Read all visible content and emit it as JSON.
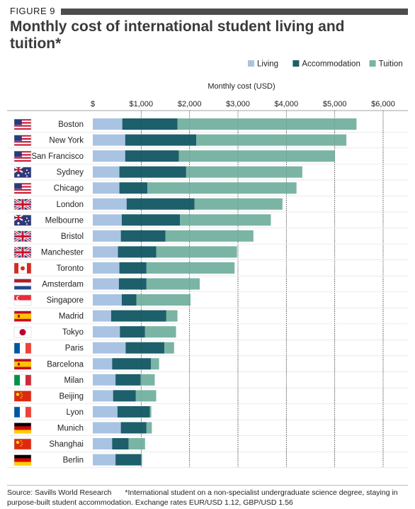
{
  "figure_label": "FIGURE 9",
  "title": "Monthly cost of international student living and tuition*",
  "footer": {
    "source": "Source: Savills World Research",
    "note": "*International student on a non-specialist undergraduate science degree, staying in purpose-built student accommodation.  Exchange rates EUR/USD 1.12, GBP/USD 1.56"
  },
  "chart_data": {
    "type": "bar",
    "orientation": "horizontal",
    "stacked": true,
    "xlabel": "Monthly cost (USD)",
    "xlim": [
      0,
      6000
    ],
    "x_ticks": [
      0,
      1000,
      2000,
      3000,
      4000,
      5000,
      6000
    ],
    "x_tick_labels": [
      "$",
      "$1,000",
      "$2,000",
      "$3,000",
      "$4,000",
      "$5,000",
      "$6,000"
    ],
    "grid": true,
    "legend_position": "top-right",
    "categories": [
      "Boston",
      "New York",
      "San Francisco",
      "Sydney",
      "Chicago",
      "London",
      "Melbourne",
      "Bristol",
      "Manchester",
      "Toronto",
      "Amsterdam",
      "Singapore",
      "Madrid",
      "Tokyo",
      "Paris",
      "Barcelona",
      "Milan",
      "Beijing",
      "Lyon",
      "Munich",
      "Shanghai",
      "Berlin"
    ],
    "flags": [
      "us",
      "us",
      "us",
      "au",
      "us",
      "gb",
      "au",
      "gb",
      "gb",
      "ca",
      "nl",
      "sg",
      "es",
      "jp",
      "fr",
      "es",
      "it",
      "cn",
      "fr",
      "de",
      "cn",
      "de"
    ],
    "series": [
      {
        "name": "Living",
        "color": "#a9c3e3",
        "values": [
          610,
          670,
          670,
          550,
          550,
          700,
          600,
          580,
          520,
          550,
          540,
          600,
          380,
          560,
          680,
          400,
          470,
          420,
          510,
          580,
          400,
          470
        ]
      },
      {
        "name": "Accommodation",
        "color": "#1d5f6b",
        "values": [
          1140,
          1470,
          1110,
          1380,
          580,
          1400,
          1200,
          920,
          790,
          560,
          570,
          300,
          1140,
          520,
          800,
          800,
          520,
          470,
          670,
          530,
          340,
          530
        ]
      },
      {
        "name": "Tuition",
        "color": "#7ab4a5",
        "values": [
          3700,
          3100,
          3220,
          2400,
          3080,
          1820,
          1880,
          1820,
          1670,
          1820,
          1100,
          1120,
          230,
          640,
          200,
          170,
          290,
          420,
          30,
          110,
          340,
          20
        ]
      }
    ]
  }
}
